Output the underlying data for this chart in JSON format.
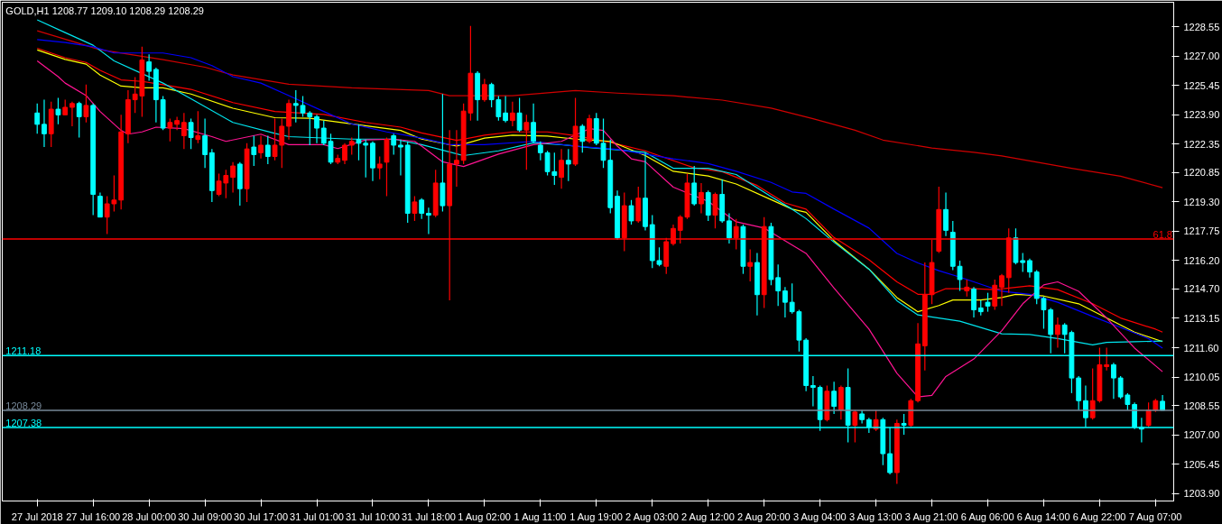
{
  "chart_data": {
    "type": "candlestick",
    "title": "GOLD,H1  1208.77 1209.10 1208.29 1208.29",
    "categories": [
      "27 Jul 2018",
      null,
      null,
      null,
      null,
      null,
      null,
      null,
      "27 Jul 16:00",
      null,
      null,
      null,
      null,
      null,
      null,
      null,
      "28 Jul 00:00",
      null,
      null,
      null,
      null,
      null,
      null,
      null,
      "30 Jul 09:00",
      null,
      null,
      null,
      null,
      null,
      null,
      null,
      "30 Jul 17:00",
      null,
      null,
      null,
      null,
      null,
      null,
      null,
      "31 Jul 01:00",
      null,
      null,
      null,
      null,
      null,
      null,
      null,
      "31 Jul 10:00",
      null,
      null,
      null,
      null,
      null,
      null,
      null,
      "31 Jul 18:00",
      null,
      null,
      null,
      null,
      null,
      null,
      null,
      "1 Aug 02:00",
      null,
      null,
      null,
      null,
      null,
      null,
      null,
      "1 Aug 11:00",
      null,
      null,
      null,
      null,
      null,
      null,
      null,
      "1 Aug 19:00",
      null,
      null,
      null,
      null,
      null,
      null,
      null,
      "2 Aug 03:00",
      null,
      null,
      null,
      null,
      null,
      null,
      null,
      "2 Aug 12:00",
      null,
      null,
      null,
      null,
      null,
      null,
      null,
      "2 Aug 20:00",
      null,
      null,
      null,
      null,
      null,
      null,
      null,
      "3 Aug 04:00",
      null,
      null,
      null,
      null,
      null,
      null,
      null,
      "3 Aug 13:00",
      null,
      null,
      null,
      null,
      null,
      null,
      null,
      "3 Aug 21:00",
      null,
      null,
      null,
      null,
      null,
      null,
      null,
      "6 Aug 06:00",
      null,
      null,
      null,
      null,
      null,
      null,
      null,
      "6 Aug 14:00",
      null,
      null,
      null,
      null,
      null,
      null,
      null,
      "6 Aug 22:00",
      null,
      null,
      null,
      null,
      null,
      null,
      null,
      "7 Aug 07:00",
      null
    ],
    "ohlc": [
      [
        1224.0,
        1224.5,
        1222.9,
        1223.4
      ],
      [
        1223.4,
        1224.7,
        1222.2,
        1222.9
      ],
      [
        1222.9,
        1224.6,
        1222.2,
        1224.2
      ],
      [
        1224.2,
        1224.8,
        1223.4,
        1223.9
      ],
      [
        1223.9,
        1224.7,
        1223.9,
        1224.3
      ],
      [
        1224.3,
        1224.6,
        1223.3,
        1224.5
      ],
      [
        1224.5,
        1224.6,
        1222.7,
        1223.8
      ],
      [
        1223.8,
        1225.5,
        1223.5,
        1224.4
      ],
      [
        1224.4,
        1224.5,
        1218.6,
        1219.7
      ],
      [
        1219.6,
        1219.8,
        1218.5,
        1218.5
      ],
      [
        1218.5,
        1219.6,
        1217.6,
        1219.2
      ],
      [
        1219.2,
        1220.7,
        1218.8,
        1219.4
      ],
      [
        1219.4,
        1223.9,
        1218.9,
        1223.0
      ],
      [
        1222.9,
        1225.2,
        1222.4,
        1224.7
      ],
      [
        1224.7,
        1225.9,
        1224.0,
        1225.0
      ],
      [
        1224.9,
        1227.5,
        1223.8,
        1226.8
      ],
      [
        1226.7,
        1227.1,
        1225.7,
        1226.2
      ],
      [
        1226.3,
        1226.4,
        1223.5,
        1224.7
      ],
      [
        1224.7,
        1224.9,
        1223.1,
        1223.2
      ],
      [
        1223.2,
        1223.7,
        1222.5,
        1223.5
      ],
      [
        1223.4,
        1223.8,
        1223.1,
        1223.6
      ],
      [
        1222.8,
        1224.0,
        1222.1,
        1223.5
      ],
      [
        1223.5,
        1223.7,
        1222.1,
        1222.7
      ],
      [
        1222.6,
        1224.1,
        1222.4,
        1222.8
      ],
      [
        1222.8,
        1223.7,
        1221.1,
        1221.8
      ],
      [
        1221.9,
        1222.1,
        1219.3,
        1219.9
      ],
      [
        1219.7,
        1220.8,
        1219.6,
        1220.4
      ],
      [
        1220.3,
        1221.0,
        1219.5,
        1220.7
      ],
      [
        1220.6,
        1221.4,
        1219.8,
        1221.2
      ],
      [
        1221.3,
        1221.4,
        1219.1,
        1220.0
      ],
      [
        1220.0,
        1222.4,
        1219.3,
        1222.1
      ],
      [
        1222.2,
        1222.8,
        1221.2,
        1221.8
      ],
      [
        1221.9,
        1222.8,
        1221.6,
        1222.3
      ],
      [
        1222.3,
        1222.8,
        1221.3,
        1221.7
      ],
      [
        1221.7,
        1223.7,
        1221.5,
        1222.3
      ],
      [
        1222.3,
        1223.7,
        1221.1,
        1223.3
      ],
      [
        1223.3,
        1224.7,
        1222.6,
        1224.5
      ],
      [
        1224.5,
        1225.2,
        1223.5,
        1224.4
      ],
      [
        1224.4,
        1224.9,
        1223.8,
        1224.0
      ],
      [
        1224.0,
        1224.1,
        1222.3,
        1223.8
      ],
      [
        1223.8,
        1223.9,
        1222.4,
        1223.2
      ],
      [
        1223.2,
        1223.6,
        1222.3,
        1222.4
      ],
      [
        1222.5,
        1222.9,
        1221.3,
        1221.4
      ],
      [
        1221.4,
        1221.8,
        1221.3,
        1221.6
      ],
      [
        1221.5,
        1222.4,
        1221.3,
        1222.3
      ],
      [
        1222.3,
        1222.7,
        1221.8,
        1222.5
      ],
      [
        1222.6,
        1223.4,
        1221.5,
        1222.4
      ],
      [
        1222.4,
        1222.6,
        1220.6,
        1222.3
      ],
      [
        1222.4,
        1222.5,
        1220.4,
        1221.1
      ],
      [
        1221.1,
        1221.7,
        1220.5,
        1221.3
      ],
      [
        1221.4,
        1222.7,
        1219.6,
        1222.6
      ],
      [
        1222.8,
        1222.9,
        1221.8,
        1222.3
      ],
      [
        1222.3,
        1222.6,
        1220.7,
        1222.2
      ],
      [
        1222.3,
        1222.5,
        1218.2,
        1218.7
      ],
      [
        1218.7,
        1219.6,
        1218.3,
        1219.3
      ],
      [
        1219.4,
        1219.5,
        1218.4,
        1218.7
      ],
      [
        1218.7,
        1219.0,
        1217.6,
        1218.6
      ],
      [
        1218.6,
        1221.0,
        1218.5,
        1220.3
      ],
      [
        1220.3,
        1225.0,
        1218.8,
        1219.1
      ],
      [
        1219.1,
        1223.1,
        1214.1,
        1221.3
      ],
      [
        1221.3,
        1223.1,
        1220.1,
        1221.5
      ],
      [
        1221.5,
        1224.5,
        1221.3,
        1224.1
      ],
      [
        1224.0,
        1228.6,
        1223.6,
        1226.1
      ],
      [
        1226.1,
        1226.2,
        1223.6,
        1224.7
      ],
      [
        1224.7,
        1225.8,
        1224.6,
        1225.5
      ],
      [
        1225.5,
        1225.6,
        1224.3,
        1224.7
      ],
      [
        1224.7,
        1224.9,
        1223.6,
        1223.8
      ],
      [
        1224.0,
        1224.9,
        1223.5,
        1223.6
      ],
      [
        1223.6,
        1224.6,
        1223.3,
        1224.0
      ],
      [
        1224.0,
        1224.8,
        1223.0,
        1223.1
      ],
      [
        1223.1,
        1223.9,
        1221.0,
        1223.5
      ],
      [
        1223.5,
        1224.5,
        1222.4,
        1222.5
      ],
      [
        1222.3,
        1222.5,
        1221.5,
        1221.9
      ],
      [
        1221.9,
        1222.0,
        1220.7,
        1220.9
      ],
      [
        1220.9,
        1221.9,
        1220.2,
        1220.7
      ],
      [
        1220.6,
        1222.1,
        1220.0,
        1221.5
      ],
      [
        1221.5,
        1222.1,
        1220.4,
        1221.3
      ],
      [
        1221.3,
        1224.8,
        1221.2,
        1223.3
      ],
      [
        1223.3,
        1223.4,
        1221.9,
        1222.5
      ],
      [
        1222.5,
        1223.9,
        1222.4,
        1223.7
      ],
      [
        1223.7,
        1224.0,
        1222.3,
        1222.4
      ],
      [
        1222.4,
        1223.7,
        1221.1,
        1221.5
      ],
      [
        1221.5,
        1222.6,
        1218.7,
        1219.0
      ],
      [
        1219.6,
        1219.9,
        1217.3,
        1217.4
      ],
      [
        1217.4,
        1219.8,
        1216.7,
        1219.1
      ],
      [
        1219.1,
        1219.4,
        1218.1,
        1218.3
      ],
      [
        1218.3,
        1220.1,
        1218.2,
        1219.5
      ],
      [
        1219.5,
        1221.9,
        1217.8,
        1218.0
      ],
      [
        1218.1,
        1218.6,
        1215.8,
        1216.2
      ],
      [
        1216.2,
        1216.9,
        1215.9,
        1216.0
      ],
      [
        1215.9,
        1217.4,
        1215.5,
        1217.2
      ],
      [
        1217.1,
        1218.1,
        1217.0,
        1217.9
      ],
      [
        1217.8,
        1218.6,
        1217.1,
        1218.5
      ],
      [
        1218.5,
        1220.8,
        1218.4,
        1220.3
      ],
      [
        1220.3,
        1221.2,
        1219.1,
        1219.2
      ],
      [
        1219.2,
        1220.3,
        1218.7,
        1219.8
      ],
      [
        1219.8,
        1219.9,
        1218.3,
        1218.6
      ],
      [
        1218.6,
        1219.8,
        1217.9,
        1219.7
      ],
      [
        1219.7,
        1220.5,
        1218.2,
        1218.3
      ],
      [
        1218.3,
        1218.7,
        1217.1,
        1217.4
      ],
      [
        1217.4,
        1218.4,
        1216.8,
        1218.0
      ],
      [
        1218.0,
        1218.1,
        1215.5,
        1215.9
      ],
      [
        1215.9,
        1216.8,
        1215.1,
        1216.1
      ],
      [
        1216.1,
        1216.6,
        1213.3,
        1214.4
      ],
      [
        1214.4,
        1218.5,
        1213.7,
        1218.0
      ],
      [
        1218.0,
        1218.2,
        1214.9,
        1215.2
      ],
      [
        1215.3,
        1216.0,
        1213.8,
        1214.6
      ],
      [
        1214.6,
        1214.8,
        1213.2,
        1214.0
      ],
      [
        1214.0,
        1215.0,
        1213.4,
        1213.5
      ],
      [
        1213.5,
        1213.6,
        1211.4,
        1212.0
      ],
      [
        1212.0,
        1212.1,
        1209.3,
        1209.6
      ],
      [
        1209.6,
        1210.1,
        1208.5,
        1209.5
      ],
      [
        1209.5,
        1209.6,
        1207.2,
        1207.8
      ],
      [
        1207.8,
        1209.6,
        1207.7,
        1209.3
      ],
      [
        1209.3,
        1209.8,
        1208.1,
        1208.5
      ],
      [
        1208.3,
        1209.6,
        1207.8,
        1209.5
      ],
      [
        1209.5,
        1210.5,
        1206.6,
        1207.5
      ],
      [
        1207.5,
        1208.3,
        1206.6,
        1208.2
      ],
      [
        1208.1,
        1208.3,
        1207.6,
        1207.8
      ],
      [
        1207.8,
        1207.9,
        1207.1,
        1207.4
      ],
      [
        1207.3,
        1208.3,
        1207.2,
        1207.8
      ],
      [
        1207.8,
        1207.9,
        1205.4,
        1206.0
      ],
      [
        1206.0,
        1207.4,
        1204.9,
        1205.0
      ],
      [
        1205.0,
        1207.8,
        1204.4,
        1207.6
      ],
      [
        1207.6,
        1208.1,
        1207.0,
        1207.5
      ],
      [
        1207.5,
        1208.9,
        1207.4,
        1208.8
      ],
      [
        1208.8,
        1212.9,
        1208.7,
        1211.8
      ],
      [
        1211.7,
        1216.1,
        1210.4,
        1214.4
      ],
      [
        1214.4,
        1217.3,
        1213.9,
        1216.1
      ],
      [
        1216.7,
        1220.1,
        1216.6,
        1218.9
      ],
      [
        1218.9,
        1219.8,
        1217.5,
        1217.8
      ],
      [
        1217.7,
        1218.3,
        1215.7,
        1215.9
      ],
      [
        1215.9,
        1216.2,
        1214.6,
        1215.2
      ],
      [
        1214.6,
        1215.2,
        1214.3,
        1214.8
      ],
      [
        1214.7,
        1214.8,
        1213.2,
        1213.6
      ],
      [
        1213.7,
        1214.1,
        1213.3,
        1213.5
      ],
      [
        1214.0,
        1214.5,
        1213.5,
        1213.8
      ],
      [
        1213.8,
        1215.2,
        1213.6,
        1214.9
      ],
      [
        1214.8,
        1215.5,
        1213.8,
        1215.4
      ],
      [
        1215.3,
        1217.9,
        1214.5,
        1217.4
      ],
      [
        1217.4,
        1217.9,
        1216.0,
        1216.1
      ],
      [
        1216.2,
        1216.6,
        1215.6,
        1216.1
      ],
      [
        1216.2,
        1216.3,
        1215.3,
        1215.6
      ],
      [
        1215.6,
        1215.7,
        1213.9,
        1214.2
      ],
      [
        1214.2,
        1214.3,
        1212.6,
        1213.6
      ],
      [
        1213.6,
        1213.7,
        1211.3,
        1212.3
      ],
      [
        1212.3,
        1213.2,
        1211.6,
        1212.8
      ],
      [
        1212.8,
        1212.9,
        1211.3,
        1212.3
      ],
      [
        1212.4,
        1212.5,
        1209.2,
        1210.0
      ],
      [
        1210.0,
        1210.1,
        1208.3,
        1208.8
      ],
      [
        1208.8,
        1209.6,
        1207.4,
        1207.9
      ],
      [
        1207.9,
        1210.5,
        1207.8,
        1208.8
      ],
      [
        1208.8,
        1211.6,
        1208.7,
        1210.7
      ],
      [
        1210.6,
        1211.6,
        1210.4,
        1210.7
      ],
      [
        1210.7,
        1210.8,
        1208.9,
        1210.0
      ],
      [
        1210.0,
        1210.1,
        1208.9,
        1209.0
      ],
      [
        1209.1,
        1209.2,
        1208.3,
        1208.6
      ],
      [
        1208.6,
        1208.7,
        1207.3,
        1207.4
      ],
      [
        1207.4,
        1207.9,
        1206.6,
        1207.3
      ],
      [
        1207.5,
        1208.7,
        1207.4,
        1208.3
      ],
      [
        1208.3,
        1208.9,
        1208.2,
        1208.8
      ],
      [
        1208.77,
        1209.1,
        1208.29,
        1208.29
      ]
    ],
    "colors": [
      "#00ffff",
      "#00ffff",
      "#ff0000",
      "#00ffff",
      "#ff0000",
      "#ff0000",
      "#00ffff",
      "#ff0000",
      "#00ffff",
      "#00ffff",
      "#ff0000",
      "#ff0000",
      "#ff0000",
      "#ff0000",
      "#ff0000",
      "#ff0000",
      "#00ffff",
      "#00ffff",
      "#00ffff",
      "#ff0000",
      "#ff0000",
      "#ff0000",
      "#00ffff",
      "#ff0000",
      "#00ffff",
      "#00ffff",
      "#ff0000",
      "#ff0000",
      "#ff0000",
      "#00ffff",
      "#ff0000",
      "#00ffff",
      "#ff0000",
      "#00ffff",
      "#ff0000",
      "#ff0000",
      "#ff0000",
      "#00ffff",
      "#00ffff",
      "#00ffff",
      "#00ffff",
      "#00ffff",
      "#00ffff",
      "#ff0000",
      "#ff0000",
      "#ff0000",
      "#00ffff",
      "#00ffff",
      "#00ffff",
      "#ff0000",
      "#ff0000",
      "#00ffff",
      "#00ffff",
      "#00ffff",
      "#ff0000",
      "#00ffff",
      "#00ffff",
      "#ff0000",
      "#00ffff",
      "#ff0000",
      "#ff0000",
      "#ff0000",
      "#ff0000",
      "#00ffff",
      "#ff0000",
      "#00ffff",
      "#00ffff",
      "#00ffff",
      "#ff0000",
      "#00ffff",
      "#ff0000",
      "#00ffff",
      "#00ffff",
      "#00ffff",
      "#00ffff",
      "#ff0000",
      "#00ffff",
      "#ff0000",
      "#00ffff",
      "#ff0000",
      "#00ffff",
      "#00ffff",
      "#00ffff",
      "#00ffff",
      "#ff0000",
      "#00ffff",
      "#ff0000",
      "#00ffff",
      "#00ffff",
      "#00ffff",
      "#ff0000",
      "#ff0000",
      "#ff0000",
      "#ff0000",
      "#00ffff",
      "#ff0000",
      "#00ffff",
      "#ff0000",
      "#00ffff",
      "#00ffff",
      "#ff0000",
      "#00ffff",
      "#ff0000",
      "#00ffff",
      "#ff0000",
      "#00ffff",
      "#00ffff",
      "#00ffff",
      "#00ffff",
      "#00ffff",
      "#00ffff",
      "#00ffff",
      "#00ffff",
      "#ff0000",
      "#00ffff",
      "#ff0000",
      "#00ffff",
      "#ff0000",
      "#00ffff",
      "#00ffff",
      "#ff0000",
      "#00ffff",
      "#00ffff",
      "#ff0000",
      "#00ffff",
      "#ff0000",
      "#ff0000",
      "#ff0000",
      "#ff0000",
      "#ff0000",
      "#00ffff",
      "#00ffff",
      "#00ffff",
      "#ff0000",
      "#00ffff",
      "#00ffff",
      "#00ffff",
      "#ff0000",
      "#ff0000",
      "#ff0000",
      "#00ffff",
      "#00ffff",
      "#00ffff",
      "#00ffff",
      "#00ffff",
      "#00ffff",
      "#ff0000",
      "#00ffff",
      "#00ffff",
      "#00ffff",
      "#00ffff",
      "#ff0000",
      "#ff0000",
      "#ff0000",
      "#00ffff",
      "#00ffff",
      "#00ffff",
      "#00ffff",
      "#00ffff",
      "#ff0000",
      "#ff0000",
      "#00ffff"
    ],
    "series": [
      {
        "type": "line",
        "color": "#d00000",
        "values": [
          1228.34,
          null,
          null,
          null,
          null,
          null,
          null,
          null,
          null,
          1227.34,
          null,
          null,
          null,
          null,
          null,
          null,
          null,
          null,
          1226.82,
          null,
          null,
          null,
          null,
          null,
          1226.42,
          null,
          null,
          null,
          1226.01,
          null,
          null,
          null,
          null,
          null,
          null,
          null,
          1225.52,
          null,
          null,
          null,
          null,
          null,
          null,
          null,
          null,
          1225.33,
          null,
          null,
          null,
          null,
          null,
          null,
          null,
          null,
          null,
          null,
          1225.19,
          null,
          null,
          1224.91,
          null,
          null,
          null,
          null,
          null,
          null,
          null,
          null,
          1224.91,
          null,
          null,
          null,
          null,
          null,
          null,
          null,
          null,
          1225.19,
          null,
          null,
          null,
          null,
          null,
          1225.05,
          null,
          null,
          null,
          null,
          null,
          null,
          null,
          1224.91,
          null,
          null,
          null,
          null,
          null,
          null,
          1224.68,
          null,
          null,
          null,
          null,
          null,
          null,
          1224.26,
          null,
          null,
          null,
          null,
          null,
          1223.7,
          null,
          null,
          null,
          null,
          null,
          1223.09,
          null,
          null,
          null,
          1222.57,
          null,
          null,
          null,
          null,
          null,
          null,
          1222.15,
          null,
          null,
          null,
          null,
          null,
          1221.92,
          null,
          null,
          null,
          1221.73,
          null,
          null,
          null,
          null,
          null,
          null,
          null,
          null,
          null,
          1221.08,
          null,
          null,
          null,
          null,
          null,
          null,
          1220.66,
          null,
          null,
          null,
          null,
          null,
          1220.05
        ]
      },
      {
        "type": "line",
        "color": "#ff0000",
        "values": [
          1227.42,
          null,
          null,
          null,
          1226.92,
          null,
          null,
          1226.67,
          null,
          1226.25,
          null,
          null,
          1225.75,
          null,
          null,
          1225.67,
          null,
          null,
          1225.5,
          null,
          null,
          null,
          1225.25,
          null,
          null,
          null,
          null,
          null,
          1224.55,
          null,
          null,
          null,
          null,
          null,
          1224.08,
          null,
          null,
          null,
          null,
          null,
          null,
          1223.92,
          null,
          null,
          null,
          null,
          null,
          1223.5,
          null,
          null,
          null,
          null,
          1223.25,
          null,
          null,
          1222.95,
          null,
          null,
          null,
          null,
          1222.55,
          null,
          null,
          null,
          1222.83,
          null,
          null,
          null,
          1223.0,
          null,
          null,
          null,
          null,
          1223.0,
          null,
          null,
          null,
          1222.8,
          null,
          null,
          null,
          null,
          1222.45,
          null,
          null,
          null,
          null,
          1222.0,
          null,
          null,
          null,
          null,
          null,
          null,
          1221.1,
          null,
          null,
          null,
          1220.9,
          null,
          null,
          null,
          null,
          1220.17,
          null,
          null,
          null,
          1219.25,
          null,
          null,
          1218.92,
          null,
          null,
          null,
          1217.42,
          null,
          null,
          null,
          null,
          1216.25,
          null,
          null,
          null,
          1215.08,
          null,
          null,
          1214.42,
          null,
          1214.42,
          null,
          1214.72,
          null,
          null,
          null,
          1214.72,
          null,
          null,
          1214.67,
          null,
          null,
          null,
          null,
          1214.87,
          null,
          null,
          null,
          1214.67,
          null,
          null,
          null,
          null,
          1213.92,
          null,
          null,
          null,
          1213.17,
          null,
          null,
          null,
          null,
          1212.58,
          1212.42
        ]
      },
      {
        "type": "line",
        "color": "#ffff00",
        "values": [
          1227.33,
          null,
          null,
          null,
          1226.83,
          null,
          null,
          1226.58,
          null,
          1226.0,
          null,
          null,
          1225.42,
          null,
          null,
          1225.33,
          null,
          null,
          1225.33,
          null,
          null,
          null,
          1225.0,
          null,
          null,
          null,
          null,
          null,
          1224.25,
          null,
          null,
          null,
          null,
          null,
          1223.75,
          null,
          null,
          null,
          null,
          1223.72,
          null,
          null,
          null,
          null,
          null,
          1223.42,
          null,
          null,
          null,
          null,
          null,
          null,
          1223.08,
          null,
          null,
          1222.62,
          null,
          null,
          null,
          null,
          1222.25,
          null,
          null,
          null,
          1222.67,
          null,
          null,
          null,
          1222.83,
          null,
          null,
          null,
          null,
          1222.78,
          null,
          null,
          null,
          1222.62,
          null,
          null,
          null,
          null,
          1222.5,
          null,
          null,
          null,
          null,
          1221.75,
          null,
          null,
          null,
          1220.92,
          null,
          null,
          null,
          null,
          1220.67,
          null,
          null,
          null,
          1220.25,
          null,
          null,
          null,
          null,
          1219.42,
          null,
          null,
          1218.92,
          null,
          1218.75,
          null,
          null,
          null,
          1217.25,
          null,
          null,
          null,
          null,
          1215.75,
          null,
          null,
          null,
          1214.25,
          null,
          null,
          1213.5,
          null,
          null,
          1213.83,
          null,
          1214.12,
          null,
          null,
          null,
          1214.12,
          null,
          null,
          1214.25,
          null,
          1214.42,
          null,
          null,
          null,
          1214.33,
          null,
          null,
          null,
          null,
          1213.92,
          null,
          null,
          null,
          1213.17,
          null,
          null,
          null,
          1212.42,
          null,
          null,
          null,
          1211.92
        ]
      },
      {
        "type": "line",
        "color": "#00e5ee",
        "values": [
          1228.92,
          null,
          null,
          null,
          1228.25,
          null,
          null,
          null,
          1227.58,
          null,
          null,
          1226.75,
          null,
          null,
          null,
          1226.08,
          null,
          null,
          1225.58,
          null,
          null,
          null,
          1224.75,
          null,
          null,
          null,
          null,
          null,
          1223.5,
          null,
          null,
          null,
          null,
          null,
          1222.92,
          null,
          1222.75,
          null,
          null,
          null,
          null,
          null,
          null,
          null,
          null,
          1222.62,
          null,
          null,
          null,
          null,
          null,
          1222.62,
          null,
          null,
          null,
          1222.33,
          null,
          null,
          null,
          null,
          null,
          1221.75,
          null,
          null,
          null,
          null,
          1222.0,
          null,
          null,
          null,
          null,
          1222.42,
          null,
          null,
          null,
          1222.33,
          null,
          null,
          null,
          1222.17,
          null,
          null,
          null,
          1222.05,
          null,
          null,
          null,
          1221.92,
          null,
          null,
          null,
          1221.08,
          null,
          null,
          null,
          null,
          1221.08,
          null,
          null,
          null,
          1220.75,
          null,
          null,
          null,
          null,
          1219.58,
          null,
          null,
          1218.92,
          null,
          1218.42,
          null,
          null,
          null,
          1217.17,
          null,
          null,
          null,
          null,
          1215.75,
          null,
          null,
          null,
          1214.08,
          null,
          null,
          1213.33,
          null,
          null,
          1213.17,
          null,
          null,
          1213.0,
          null,
          null,
          1212.67,
          null,
          null,
          1212.33,
          null,
          null,
          null,
          1212.3,
          null,
          null,
          null,
          1212.08,
          null,
          null,
          null,
          null,
          1211.75,
          null,
          1211.88,
          null,
          null,
          null,
          1211.92,
          null,
          null,
          null,
          1211.95
        ]
      },
      {
        "type": "line",
        "color": "#0000ff",
        "values": [
          1227.88,
          null,
          null,
          null,
          1227.72,
          null,
          null,
          null,
          1227.5,
          null,
          null,
          1227.17,
          null,
          null,
          null,
          1227.17,
          null,
          null,
          1227.17,
          null,
          null,
          null,
          1226.92,
          null,
          null,
          1226.5,
          null,
          null,
          1225.92,
          null,
          null,
          null,
          1225.58,
          null,
          null,
          null,
          1224.92,
          null,
          null,
          null,
          null,
          1224.08,
          null,
          null,
          null,
          1223.42,
          null,
          null,
          null,
          null,
          1223.0,
          null,
          null,
          null,
          null,
          1222.67,
          null,
          null,
          null,
          1222.33,
          null,
          null,
          null,
          null,
          1222.33,
          null,
          null,
          null,
          null,
          null,
          null,
          1222.5,
          null,
          null,
          null,
          null,
          null,
          1222.25,
          null,
          null,
          null,
          null,
          null,
          1222.08,
          null,
          null,
          null,
          1221.83,
          null,
          null,
          null,
          1221.58,
          null,
          null,
          null,
          null,
          1221.33,
          null,
          null,
          null,
          1220.92,
          null,
          null,
          null,
          null,
          1220.33,
          null,
          null,
          1219.83,
          null,
          1219.75,
          null,
          null,
          null,
          1218.92,
          null,
          null,
          null,
          null,
          1217.92,
          null,
          null,
          null,
          1216.58,
          null,
          null,
          1216.08,
          null,
          null,
          1215.67,
          null,
          null,
          1215.33,
          null,
          null,
          null,
          null,
          null,
          1214.58,
          null,
          null,
          null,
          1214.42,
          null,
          null,
          null,
          1214.0,
          null,
          null,
          null,
          null,
          1213.25,
          null,
          null,
          null,
          1212.67,
          null,
          null,
          null,
          1212.08,
          null,
          1211.58
        ]
      },
      {
        "type": "line",
        "color": "#ff1493",
        "values": [
          1226.75,
          null,
          null,
          1225.92,
          1225.58,
          null,
          null,
          1224.92,
          null,
          1224.08,
          null,
          null,
          1223.08,
          1222.88,
          null,
          1223.0,
          null,
          1223.25,
          null,
          null,
          null,
          1223.17,
          null,
          null,
          null,
          1222.75,
          null,
          1222.5,
          null,
          null,
          null,
          null,
          1222.88,
          null,
          null,
          null,
          1222.33,
          null,
          null,
          null,
          null,
          1222.33,
          null,
          1222.12,
          null,
          null,
          null,
          1222.58,
          null,
          null,
          null,
          1222.62,
          null,
          null,
          1222.5,
          1222.25,
          null,
          null,
          1221.42,
          null,
          null,
          1221.17,
          null,
          null,
          null,
          null,
          1221.83,
          null,
          null,
          null,
          null,
          1222.33,
          null,
          null,
          null,
          1222.5,
          null,
          null,
          null,
          1223.17,
          null,
          1223.08,
          null,
          1222.25,
          null,
          1221.58,
          null,
          1221.42,
          null,
          null,
          null,
          1220.08,
          null,
          null,
          null,
          null,
          1219.33,
          null,
          null,
          null,
          1218.25,
          null,
          null,
          null,
          1217.92,
          null,
          null,
          1217.25,
          null,
          null,
          1216.58,
          null,
          null,
          null,
          1214.75,
          null,
          null,
          null,
          null,
          1212.58,
          null,
          null,
          null,
          1210.25,
          null,
          null,
          1209.0,
          null,
          1209.08,
          null,
          1210.08,
          null,
          null,
          null,
          1211.0,
          null,
          null,
          null,
          1212.5,
          null,
          null,
          1213.92,
          null,
          null,
          1214.92,
          null,
          1215.08,
          null,
          null,
          1214.58,
          null,
          null,
          null,
          1213.17,
          null,
          null,
          null,
          1211.58,
          null,
          null,
          null,
          1210.33
        ]
      }
    ],
    "annotations": [
      {
        "text": "61.8",
        "y": 1217.34
      }
    ],
    "ylim": [
      1203.5,
      1229.85
    ],
    "yticks": [
      {
        "value": 1203.9,
        "label": "1203.90"
      },
      {
        "value": 1205.45,
        "label": "1205.45"
      },
      {
        "value": 1207.0,
        "label": "1207.00"
      },
      {
        "value": 1208.55,
        "label": "1208.55"
      },
      {
        "value": 1210.05,
        "label": "1210.05"
      },
      {
        "value": 1211.6,
        "label": "1211.60"
      },
      {
        "value": 1213.15,
        "label": "1213.15"
      },
      {
        "value": 1214.7,
        "label": "1214.70"
      },
      {
        "value": 1216.2,
        "label": "1216.20"
      },
      {
        "value": 1217.75,
        "label": "1217.75"
      },
      {
        "value": 1219.3,
        "label": "1219.30"
      },
      {
        "value": 1220.85,
        "label": "1220.85"
      },
      {
        "value": 1222.35,
        "label": "1222.35"
      },
      {
        "value": 1223.9,
        "label": "1223.90"
      },
      {
        "value": 1225.45,
        "label": "1225.45"
      },
      {
        "value": 1227.0,
        "label": "1227.00"
      },
      {
        "value": 1228.55,
        "label": "1228.55"
      }
    ],
    "ref_lines": [
      {
        "axis": "y",
        "value": 1217.34,
        "color": "#ff0000"
      },
      {
        "axis": "y",
        "value": 1211.18,
        "label": "1211.18",
        "color": "#00ffff"
      },
      {
        "axis": "y",
        "value": 1208.29,
        "label": "1208.29",
        "color": "#778899"
      },
      {
        "axis": "y",
        "value": 1207.38,
        "label": "1207.38",
        "color": "#00ffff"
      }
    ]
  }
}
